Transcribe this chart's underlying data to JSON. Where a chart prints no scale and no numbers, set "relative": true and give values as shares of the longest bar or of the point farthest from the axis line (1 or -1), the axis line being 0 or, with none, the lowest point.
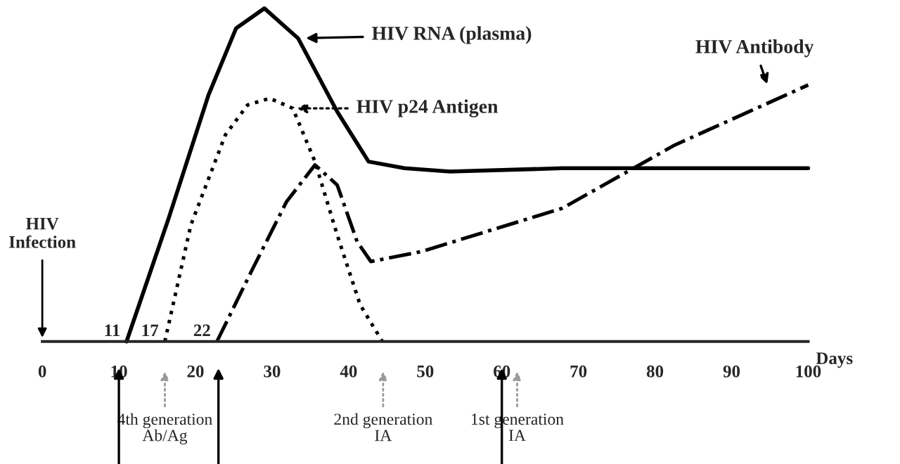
{
  "chart_data": {
    "type": "line",
    "relative": true,
    "xlabel": "Days",
    "xlim": [
      0,
      100
    ],
    "xticks": [
      0,
      10,
      20,
      30,
      40,
      50,
      60,
      70,
      80,
      90,
      100
    ],
    "grid": false,
    "marker": "none",
    "legend": "top",
    "series": [
      {
        "name": "HIV RNA (plasma)",
        "color": "#000000",
        "line_style": "solid",
        "x": [
          11,
          16.5,
          21.7,
          25.3,
          29,
          33.4,
          38.5,
          42.6,
          47.3,
          53.2,
          67.9,
          82.6,
          100
        ],
        "values": [
          0,
          0.37,
          0.74,
          0.94,
          1.0,
          0.91,
          0.69,
          0.54,
          0.52,
          0.51,
          0.52,
          0.52,
          0.52
        ]
      },
      {
        "name": "HIV p24 Antigen",
        "color": "#000000",
        "line_style": "dotted",
        "x": [
          16,
          19.4,
          23.9,
          26.8,
          29.7,
          32.7,
          35.6,
          38.5,
          41.5,
          44.4
        ],
        "values": [
          0,
          0.35,
          0.62,
          0.71,
          0.73,
          0.7,
          0.54,
          0.32,
          0.11,
          0
        ]
      },
      {
        "name": "HIV Antibody",
        "color": "#000000",
        "line_style": "dashdot",
        "x": [
          22.8,
          27.5,
          31.9,
          35.6,
          38.5,
          41.1,
          42.9,
          49.5,
          67.9,
          82.6,
          100
        ],
        "values": [
          0,
          0.22,
          0.42,
          0.53,
          0.47,
          0.3,
          0.24,
          0.27,
          0.4,
          0.59,
          0.77
        ]
      }
    ],
    "annotations": [
      "HIV\nInfection",
      {
        "text": "11",
        "x": 11,
        "y": 0
      },
      {
        "text": "17",
        "x": 16,
        "y": 0
      },
      {
        "text": "22",
        "x": 22.8,
        "y": 0
      },
      "4th generation\nAb/Ag",
      "2nd generation\nIA",
      "1st generation\nIA"
    ]
  }
}
